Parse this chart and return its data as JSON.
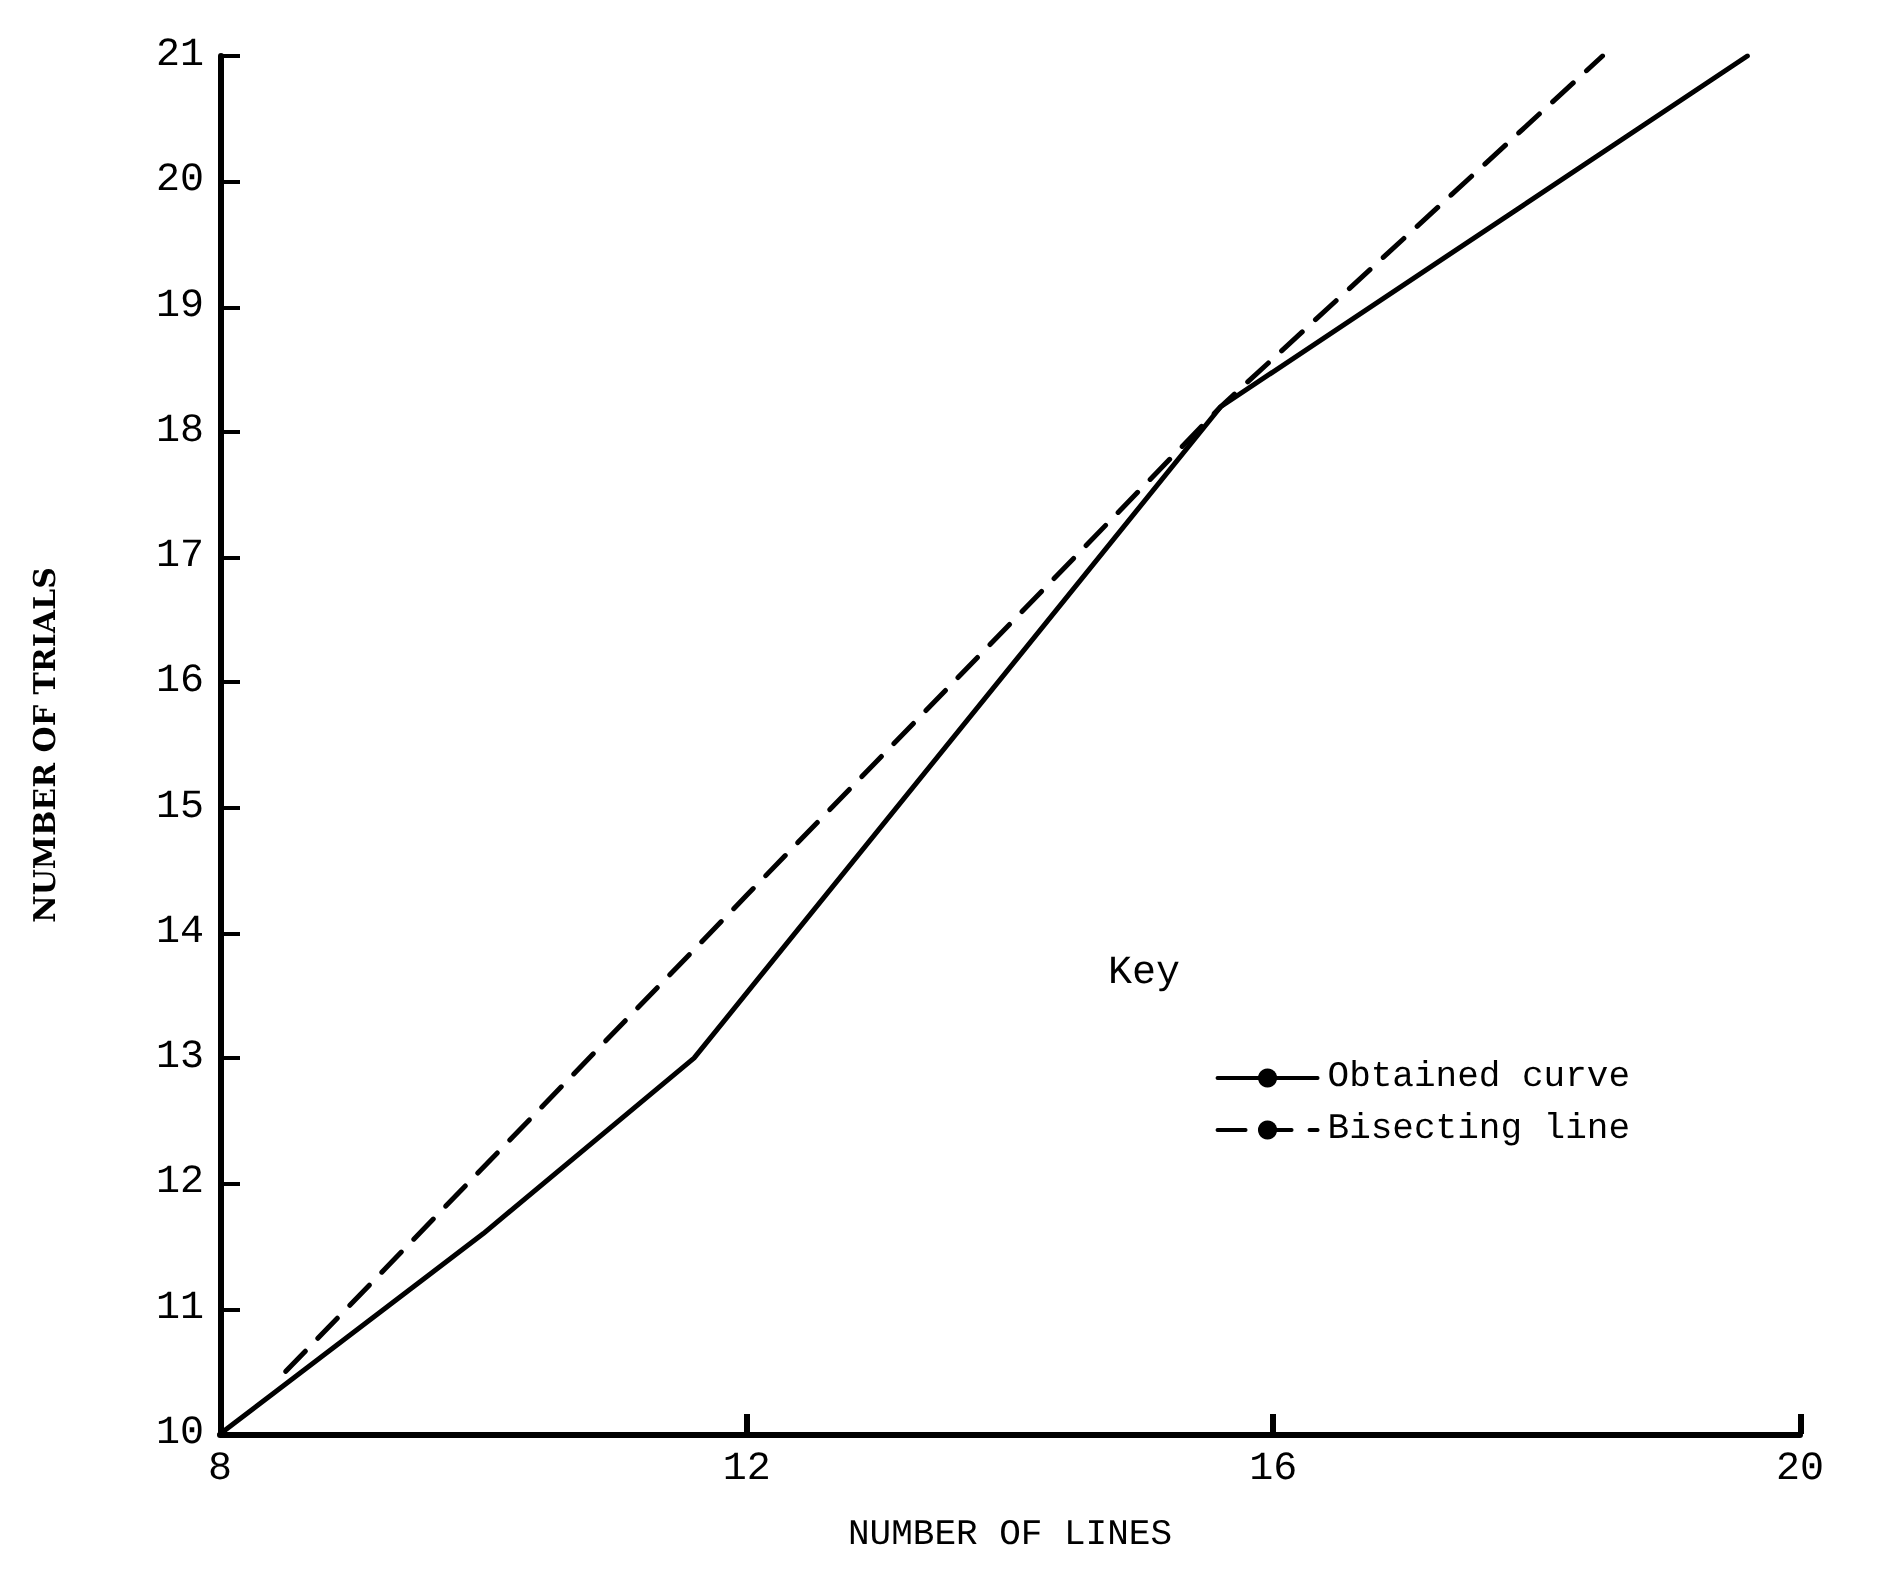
{
  "chart_data": {
    "type": "line",
    "xlabel": "NUMBER OF LINES",
    "ylabel": "NUMBER OF TRIALS",
    "legend_title": "Key",
    "legend": "bottom right",
    "grid": false,
    "marker": "none",
    "xlim": [
      8,
      20
    ],
    "xticks": [
      8,
      12,
      16,
      20
    ],
    "ylim": [
      10,
      21
    ],
    "yticks": [
      10,
      11,
      12,
      13,
      14,
      15,
      16,
      17,
      18,
      19,
      20,
      21
    ],
    "series": [
      {
        "name": "Obtained curve",
        "color": "#000000",
        "line_style": "solid",
        "x": [
          8,
          10,
          11.6,
          15.6,
          19.6
        ],
        "values": [
          10,
          11.6,
          13,
          18.2,
          21
        ]
      },
      {
        "name": "Bisecting line",
        "color": "#000000",
        "line_style": "dashed",
        "x": [
          8.5,
          12,
          15.6,
          18.5
        ],
        "values": [
          10.5,
          14.3,
          18.2,
          21
        ]
      }
    ]
  }
}
